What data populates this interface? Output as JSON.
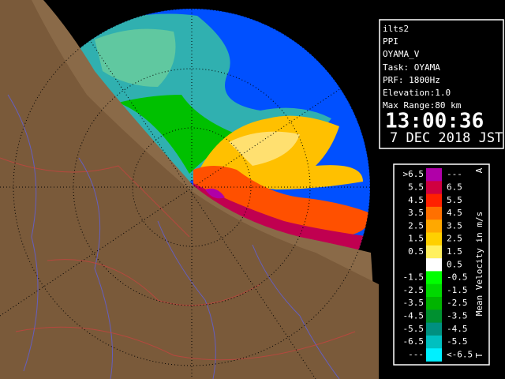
{
  "info": {
    "lines": [
      "ilts2",
      "PPI",
      "OYAMA_V",
      "Task: OYAMA",
      "PRF: 1800Hz",
      "Elevation:1.0",
      "Max Range:80 km"
    ],
    "time": "13:00:36",
    "date": "7 DEC 2018 JST"
  },
  "legend": {
    "title": "Mean Velocity in m/s",
    "top_mark": "A",
    "bottom_mark": "T",
    "rows": [
      {
        "left": ">6.5",
        "right": "---",
        "color": "#b000a8"
      },
      {
        "left": "5.5",
        "right": "6.5",
        "color": "#d00040"
      },
      {
        "left": "4.5",
        "right": "5.5",
        "color": "#ff2000"
      },
      {
        "left": "3.5",
        "right": "4.5",
        "color": "#ff7000"
      },
      {
        "left": "2.5",
        "right": "3.5",
        "color": "#ffa800"
      },
      {
        "left": "1.5",
        "right": "2.5",
        "color": "#ffd000"
      },
      {
        "left": "0.5",
        "right": "1.5",
        "color": "#fff060"
      },
      {
        "left": null,
        "right": "0.5",
        "color": "#ffffff"
      },
      {
        "left": "-1.5",
        "right": "-0.5",
        "color": "#00ff00"
      },
      {
        "left": "-2.5",
        "right": "-1.5",
        "color": "#00d800"
      },
      {
        "left": "-3.5",
        "right": "-2.5",
        "color": "#00b400"
      },
      {
        "left": "-4.5",
        "right": "-3.5",
        "color": "#009030"
      },
      {
        "left": "-5.5",
        "right": "-4.5",
        "color": "#009080"
      },
      {
        "left": "-6.5",
        "right": "-5.5",
        "color": "#00c0c0"
      },
      {
        "left": "---",
        "right": "<-6.5",
        "color": "#00f0ff"
      }
    ]
  }
}
